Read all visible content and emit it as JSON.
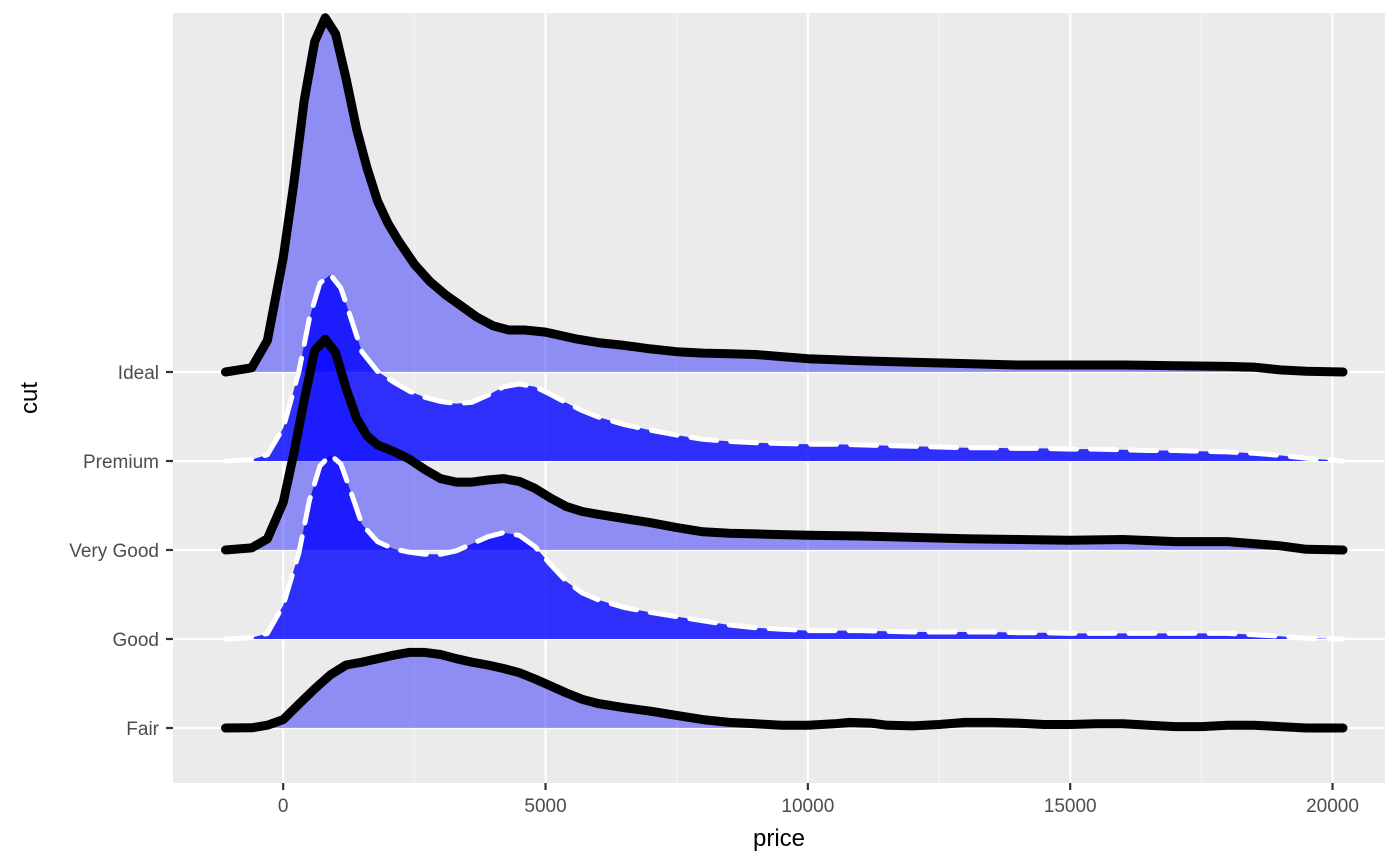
{
  "chart_data": {
    "type": "area",
    "subtype": "ridgeline",
    "title": "",
    "xlabel": "price",
    "ylabel": "cut",
    "xlim": [
      -2100,
      21000
    ],
    "x_ticks": [
      0,
      5000,
      10000,
      15000,
      20000
    ],
    "x_tick_labels": [
      "0",
      "5000",
      "10000",
      "15000",
      "20000"
    ],
    "categories": [
      "Fair",
      "Good",
      "Very Good",
      "Premium",
      "Ideal"
    ],
    "grid": true,
    "legend": "none",
    "colors": {
      "panel_background": "#ebebeb",
      "grid_major": "#ffffff",
      "grid_minor": "#f5f5f5",
      "fill": "#0000ff",
      "solid_line": "#000000",
      "dashed_line": "#ffffff"
    },
    "ridge_scale": 4.0,
    "series": [
      {
        "category": "Fair",
        "line": "solid",
        "fill_opacity": 0.4,
        "x": [
          -1100,
          -600,
          -300,
          0,
          300,
          600,
          900,
          1200,
          1500,
          1800,
          2100,
          2400,
          2700,
          3000,
          3300,
          3600,
          3900,
          4200,
          4500,
          4800,
          5100,
          5400,
          5700,
          6000,
          6500,
          7000,
          7500,
          8000,
          8500,
          9000,
          9500,
          10000,
          10500,
          10800,
          11200,
          11500,
          12000,
          12500,
          13000,
          13500,
          14000,
          14500,
          15000,
          15500,
          16000,
          16500,
          17000,
          17500,
          18000,
          18500,
          19000,
          19500,
          20200
        ],
        "y": [
          0.0,
          0.003,
          0.04,
          0.12,
          0.34,
          0.56,
          0.76,
          0.9,
          0.94,
          0.99,
          1.04,
          1.08,
          1.08,
          1.05,
          0.99,
          0.94,
          0.9,
          0.85,
          0.79,
          0.7,
          0.6,
          0.5,
          0.41,
          0.35,
          0.29,
          0.24,
          0.18,
          0.12,
          0.08,
          0.06,
          0.04,
          0.04,
          0.06,
          0.08,
          0.07,
          0.04,
          0.03,
          0.05,
          0.08,
          0.08,
          0.07,
          0.05,
          0.05,
          0.06,
          0.06,
          0.04,
          0.02,
          0.02,
          0.04,
          0.04,
          0.02,
          0.0,
          0.0
        ]
      },
      {
        "category": "Good",
        "line": "dashed",
        "fill_opacity": 0.8,
        "x": [
          -1100,
          -600,
          -300,
          0,
          300,
          500,
          700,
          900,
          1100,
          1300,
          1500,
          1800,
          2100,
          2400,
          2700,
          3000,
          3300,
          3600,
          3900,
          4200,
          4500,
          4800,
          5100,
          5400,
          5700,
          6000,
          6500,
          7000,
          7500,
          8000,
          8500,
          9000,
          9500,
          10000,
          10500,
          11000,
          11500,
          12000,
          12500,
          13000,
          13500,
          14000,
          14500,
          15000,
          15500,
          16000,
          16500,
          17000,
          17500,
          18000,
          18500,
          19000,
          19500,
          20200
        ],
        "y": [
          0.0,
          0.02,
          0.08,
          0.48,
          1.23,
          1.98,
          2.47,
          2.63,
          2.5,
          2.08,
          1.64,
          1.39,
          1.29,
          1.24,
          1.21,
          1.21,
          1.26,
          1.36,
          1.46,
          1.52,
          1.48,
          1.32,
          1.06,
          0.82,
          0.66,
          0.56,
          0.45,
          0.38,
          0.32,
          0.26,
          0.2,
          0.16,
          0.14,
          0.12,
          0.12,
          0.12,
          0.11,
          0.1,
          0.1,
          0.1,
          0.1,
          0.09,
          0.09,
          0.08,
          0.08,
          0.08,
          0.08,
          0.08,
          0.08,
          0.08,
          0.06,
          0.04,
          0.01,
          0.0
        ]
      },
      {
        "category": "Very Good",
        "line": "solid",
        "fill_opacity": 0.4,
        "x": [
          -1100,
          -600,
          -300,
          0,
          200,
          400,
          600,
          800,
          1000,
          1200,
          1400,
          1600,
          1800,
          2100,
          2400,
          2700,
          3000,
          3300,
          3600,
          3900,
          4200,
          4500,
          4800,
          5100,
          5400,
          5700,
          6000,
          6500,
          7000,
          7500,
          8000,
          8500,
          9000,
          9500,
          10000,
          11000,
          12000,
          13000,
          14000,
          15000,
          16000,
          17000,
          18000,
          19000,
          19500,
          20200
        ],
        "y": [
          0.0,
          0.03,
          0.16,
          0.68,
          1.37,
          2.14,
          2.85,
          3.01,
          2.82,
          2.31,
          1.88,
          1.63,
          1.5,
          1.41,
          1.3,
          1.15,
          1.02,
          0.97,
          0.97,
          1.0,
          1.02,
          0.98,
          0.88,
          0.74,
          0.62,
          0.55,
          0.51,
          0.45,
          0.39,
          0.32,
          0.26,
          0.24,
          0.23,
          0.22,
          0.21,
          0.2,
          0.18,
          0.16,
          0.15,
          0.14,
          0.15,
          0.12,
          0.12,
          0.06,
          0.01,
          0.0
        ]
      },
      {
        "category": "Premium",
        "line": "dashed",
        "fill_opacity": 0.8,
        "x": [
          -1100,
          -600,
          -300,
          0,
          300,
          500,
          700,
          900,
          1100,
          1300,
          1500,
          1800,
          2100,
          2400,
          2700,
          3000,
          3300,
          3600,
          3900,
          4200,
          4500,
          4800,
          5100,
          5400,
          5700,
          6000,
          6500,
          7000,
          7500,
          8000,
          8500,
          9000,
          9500,
          10000,
          10500,
          11000,
          11500,
          12000,
          12500,
          13000,
          13500,
          14000,
          14500,
          15000,
          15500,
          16000,
          16500,
          17000,
          17500,
          18000,
          18500,
          19000,
          19500,
          20200
        ],
        "y": [
          0.0,
          0.02,
          0.09,
          0.47,
          1.28,
          2.04,
          2.54,
          2.66,
          2.47,
          2.02,
          1.56,
          1.28,
          1.13,
          1.0,
          0.91,
          0.85,
          0.82,
          0.84,
          0.94,
          1.06,
          1.1,
          1.06,
          0.95,
          0.83,
          0.72,
          0.63,
          0.52,
          0.44,
          0.37,
          0.31,
          0.28,
          0.26,
          0.25,
          0.24,
          0.24,
          0.23,
          0.22,
          0.21,
          0.2,
          0.19,
          0.19,
          0.18,
          0.18,
          0.17,
          0.17,
          0.16,
          0.15,
          0.15,
          0.14,
          0.13,
          0.11,
          0.08,
          0.04,
          0.0
        ]
      },
      {
        "category": "Ideal",
        "line": "solid",
        "fill_opacity": 0.4,
        "x": [
          -1100,
          -600,
          -300,
          0,
          200,
          400,
          600,
          800,
          1000,
          1200,
          1400,
          1600,
          1800,
          2000,
          2200,
          2500,
          2800,
          3100,
          3400,
          3700,
          4000,
          4300,
          4600,
          5000,
          5300,
          5600,
          6000,
          6500,
          7000,
          7500,
          8000,
          8500,
          9000,
          9500,
          10000,
          11000,
          12000,
          13000,
          14000,
          15000,
          16000,
          17000,
          18000,
          18500,
          19000,
          19500,
          20200
        ],
        "y": [
          0.0,
          0.06,
          0.45,
          1.63,
          2.68,
          3.88,
          4.72,
          5.06,
          4.83,
          4.19,
          3.47,
          2.91,
          2.44,
          2.12,
          1.87,
          1.54,
          1.29,
          1.1,
          0.94,
          0.78,
          0.66,
          0.6,
          0.6,
          0.57,
          0.52,
          0.47,
          0.42,
          0.38,
          0.33,
          0.29,
          0.27,
          0.26,
          0.25,
          0.22,
          0.19,
          0.16,
          0.14,
          0.12,
          0.1,
          0.1,
          0.1,
          0.09,
          0.08,
          0.07,
          0.03,
          0.01,
          0.0
        ]
      }
    ]
  }
}
